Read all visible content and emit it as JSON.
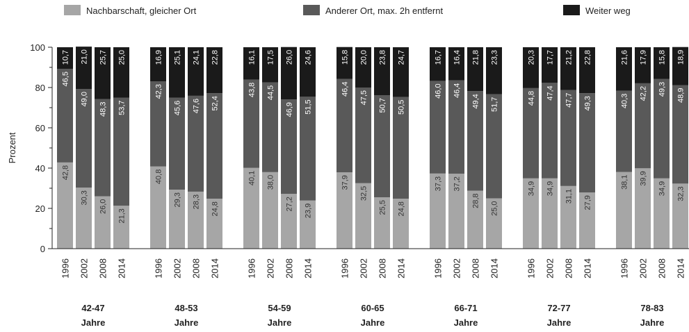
{
  "chart_data": {
    "type": "bar",
    "stacked": true,
    "y_label": "Prozent",
    "categories": [
      "1996",
      "2002",
      "2008",
      "2014",
      "1996",
      "2002",
      "2008",
      "2014",
      "1996",
      "2002",
      "2008",
      "2014",
      "1996",
      "2002",
      "2008",
      "2014",
      "1996",
      "2002",
      "2008",
      "2014",
      "1996",
      "2002",
      "2008",
      "2014",
      "1996",
      "2002",
      "2008",
      "2014"
    ],
    "groups": [
      {
        "name": "42-47",
        "unit": "Jahre"
      },
      {
        "name": "48-53",
        "unit": "Jahre"
      },
      {
        "name": "54-59",
        "unit": "Jahre"
      },
      {
        "name": "60-65",
        "unit": "Jahre"
      },
      {
        "name": "66-71",
        "unit": "Jahre"
      },
      {
        "name": "72-77",
        "unit": "Jahre"
      },
      {
        "name": "78-83",
        "unit": "Jahre"
      }
    ],
    "series": [
      {
        "name": "Nachbarschaft, gleicher Ort",
        "color": "#a6a6a6",
        "label_color": "#333333",
        "values": [
          42.8,
          30.3,
          26.0,
          21.3,
          40.8,
          29.3,
          28.3,
          24.8,
          40.1,
          38.0,
          27.2,
          23.9,
          37.9,
          32.5,
          25.5,
          24.8,
          37.3,
          37.2,
          28.8,
          25.0,
          34.9,
          34.9,
          31.1,
          27.9,
          38.1,
          39.9,
          34.9,
          32.3
        ],
        "value_labels": [
          "42,8",
          "30,3",
          "26,0",
          "21,3",
          "40,8",
          "29,3",
          "28,3",
          "24,8",
          "40,1",
          "38,0",
          "27,2",
          "23,9",
          "37,9",
          "32,5",
          "25,5",
          "24,8",
          "37,3",
          "37,2",
          "28,8",
          "25,0",
          "34,9",
          "34,9",
          "31,1",
          "27,9",
          "38,1",
          "39,9",
          "34,9",
          "32,3"
        ]
      },
      {
        "name": "Anderer Ort, max. 2h entfernt",
        "color": "#595959",
        "label_color": "#ffffff",
        "values": [
          46.5,
          49.0,
          48.3,
          53.7,
          42.3,
          45.6,
          47.6,
          52.4,
          43.8,
          44.5,
          46.9,
          51.5,
          46.4,
          47.5,
          50.7,
          50.5,
          46.0,
          46.4,
          49.4,
          51.7,
          44.8,
          47.4,
          47.7,
          49.3,
          40.3,
          42.2,
          49.3,
          48.9
        ],
        "value_labels": [
          "46,5",
          "49,0",
          "48,3",
          "53,7",
          "42,3",
          "45,6",
          "47,6",
          "52,4",
          "43,8",
          "44,5",
          "46,9",
          "51,5",
          "46,4",
          "47,5",
          "50,7",
          "50,5",
          "46,0",
          "46,4",
          "49,4",
          "51,7",
          "44,8",
          "47,4",
          "47,7",
          "49,3",
          "40,3",
          "42,2",
          "49,3",
          "48,9"
        ]
      },
      {
        "name": "Weiter weg",
        "color": "#1a1a1a",
        "label_color": "#ffffff",
        "values": [
          10.7,
          21.0,
          25.7,
          25.0,
          16.9,
          25.1,
          24.1,
          22.8,
          16.1,
          17.5,
          26.0,
          24.6,
          15.8,
          20.0,
          23.8,
          24.7,
          16.7,
          16.4,
          21.8,
          23.3,
          20.3,
          17.7,
          21.2,
          22.8,
          21.6,
          17.9,
          15.8,
          18.9
        ],
        "value_labels": [
          "10,7",
          "21,0",
          "25,7",
          "25,0",
          "16,9",
          "25,1",
          "24,1",
          "22,8",
          "16,1",
          "17,5",
          "26,0",
          "24,6",
          "15,8",
          "20,0",
          "23,8",
          "24,7",
          "16,7",
          "16,4",
          "21,8",
          "23,3",
          "20,3",
          "17,7",
          "21,2",
          "22,8",
          "21,6",
          "17,9",
          "15,8",
          "18,9"
        ]
      }
    ],
    "ylim": [
      0,
      100
    ],
    "yticks": [
      0,
      20,
      40,
      60,
      80,
      100
    ],
    "yminorticks": [
      10,
      30,
      50,
      70,
      90
    ]
  }
}
